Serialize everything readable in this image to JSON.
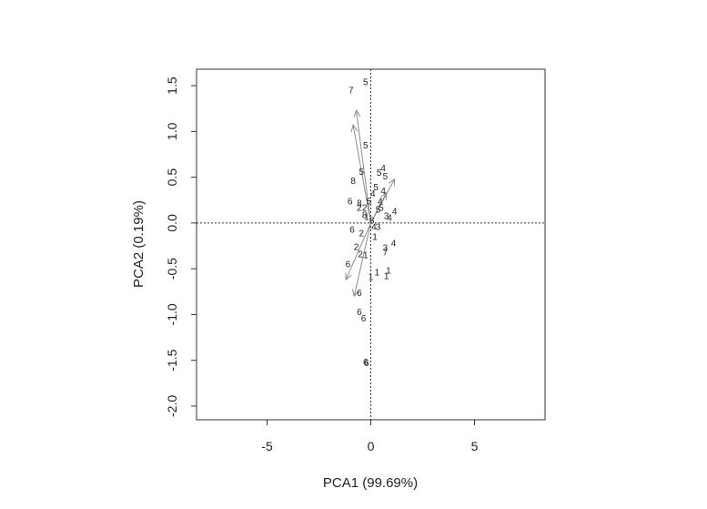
{
  "chart_data": {
    "type": "scatter",
    "title": "",
    "xlabel": "PCA1 (99.69%)",
    "ylabel": "PCA2 (0.19%)",
    "xlim": [
      -8.4,
      8.4
    ],
    "ylim": [
      -2.15,
      1.68
    ],
    "xticks": [
      -5,
      0,
      5
    ],
    "yticks": [
      -2.0,
      -1.5,
      -1.0,
      -0.5,
      0.0,
      0.5,
      1.0,
      1.5
    ],
    "grid": false,
    "reference_lines": [
      {
        "axis": "x",
        "value": 0
      },
      {
        "axis": "y",
        "value": 0
      }
    ],
    "points": [
      {
        "x": -0.25,
        "y": 1.54,
        "label": "5"
      },
      {
        "x": -0.95,
        "y": 1.45,
        "label": "7"
      },
      {
        "x": -0.25,
        "y": 0.85,
        "label": "5"
      },
      {
        "x": -0.45,
        "y": 0.56,
        "label": "5"
      },
      {
        "x": -0.85,
        "y": 0.46,
        "label": "8"
      },
      {
        "x": 0.6,
        "y": 0.6,
        "label": "4"
      },
      {
        "x": 0.4,
        "y": 0.55,
        "label": "5"
      },
      {
        "x": 0.7,
        "y": 0.51,
        "label": "5"
      },
      {
        "x": 0.25,
        "y": 0.39,
        "label": "5"
      },
      {
        "x": 0.6,
        "y": 0.35,
        "label": "4"
      },
      {
        "x": 0.1,
        "y": 0.32,
        "label": "4"
      },
      {
        "x": -1.0,
        "y": 0.24,
        "label": "6"
      },
      {
        "x": -0.55,
        "y": 0.22,
        "label": "8"
      },
      {
        "x": -0.1,
        "y": 0.24,
        "label": "5"
      },
      {
        "x": 0.45,
        "y": 0.24,
        "label": "4"
      },
      {
        "x": -0.55,
        "y": 0.17,
        "label": "2"
      },
      {
        "x": -0.3,
        "y": 0.17,
        "label": "2"
      },
      {
        "x": 0.5,
        "y": 0.17,
        "label": "5"
      },
      {
        "x": 0.35,
        "y": 0.15,
        "label": "5"
      },
      {
        "x": -0.3,
        "y": 0.09,
        "label": "8"
      },
      {
        "x": -0.2,
        "y": 0.07,
        "label": "1"
      },
      {
        "x": 1.15,
        "y": 0.13,
        "label": "4"
      },
      {
        "x": 0.75,
        "y": 0.08,
        "label": "3"
      },
      {
        "x": 0.9,
        "y": 0.06,
        "label": "4"
      },
      {
        "x": 0.05,
        "y": 0.03,
        "label": "8"
      },
      {
        "x": 0.15,
        "y": -0.04,
        "label": "4"
      },
      {
        "x": 0.35,
        "y": -0.04,
        "label": "3"
      },
      {
        "x": -0.9,
        "y": -0.07,
        "label": "6"
      },
      {
        "x": -0.45,
        "y": -0.11,
        "label": "2"
      },
      {
        "x": 0.2,
        "y": -0.15,
        "label": "1"
      },
      {
        "x": -0.7,
        "y": -0.26,
        "label": "2"
      },
      {
        "x": 1.1,
        "y": -0.22,
        "label": "4"
      },
      {
        "x": 0.7,
        "y": -0.27,
        "label": "3"
      },
      {
        "x": 0.7,
        "y": -0.32,
        "label": "7"
      },
      {
        "x": -0.5,
        "y": -0.34,
        "label": "2"
      },
      {
        "x": -0.25,
        "y": -0.35,
        "label": "1"
      },
      {
        "x": -1.1,
        "y": -0.45,
        "label": "6"
      },
      {
        "x": 0.3,
        "y": -0.54,
        "label": "1"
      },
      {
        "x": 0.85,
        "y": -0.52,
        "label": "1"
      },
      {
        "x": 0.0,
        "y": -0.59,
        "label": "1"
      },
      {
        "x": 0.75,
        "y": -0.58,
        "label": "1"
      },
      {
        "x": -0.55,
        "y": -0.76,
        "label": "6"
      },
      {
        "x": -0.55,
        "y": -0.97,
        "label": "6"
      },
      {
        "x": -0.35,
        "y": -1.04,
        "label": "6"
      },
      {
        "x": -0.25,
        "y": -1.52,
        "label": "6"
      },
      {
        "x": -0.2,
        "y": -1.53,
        "label": "6"
      }
    ],
    "loadings": [
      {
        "x": -0.7,
        "y": 1.23
      },
      {
        "x": -0.85,
        "y": 1.07
      },
      {
        "x": 1.15,
        "y": 0.48
      },
      {
        "x": 0.75,
        "y": 0.33
      },
      {
        "x": -0.8,
        "y": -0.8
      },
      {
        "x": -1.2,
        "y": -0.62
      }
    ]
  }
}
